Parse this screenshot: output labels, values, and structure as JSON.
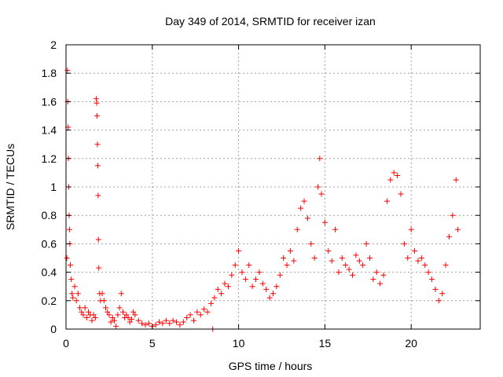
{
  "chart_data": {
    "type": "scatter",
    "title": "Day 349 of 2014, SRMTID for receiver izan",
    "xlabel": "GPS time / hours",
    "ylabel": "SRMTID / TECUs",
    "xlim": [
      0,
      24
    ],
    "ylim": [
      0,
      2
    ],
    "x_ticks": [
      0,
      5,
      10,
      15,
      20
    ],
    "x_tick_labels": [
      "0",
      "5",
      "10",
      "15",
      "20"
    ],
    "y_ticks": [
      0,
      0.2,
      0.4,
      0.6,
      0.8,
      1,
      1.2,
      1.4,
      1.6,
      1.8,
      2
    ],
    "y_tick_labels": [
      "0",
      "0.2",
      "0.4",
      "0.6",
      "0.8",
      "1",
      "1.2",
      "1.4",
      "1.6",
      "1.8",
      "2"
    ],
    "grid": true,
    "marker": "+",
    "series": [
      {
        "name": "SRMTID",
        "color": "#ff0000",
        "points": [
          [
            0.05,
            0.5
          ],
          [
            0.08,
            1.82
          ],
          [
            0.1,
            1.6
          ],
          [
            0.12,
            1.42
          ],
          [
            0.14,
            1.2
          ],
          [
            0.16,
            1.0
          ],
          [
            0.18,
            0.8
          ],
          [
            0.2,
            0.7
          ],
          [
            0.22,
            0.6
          ],
          [
            0.25,
            0.45
          ],
          [
            0.3,
            0.35
          ],
          [
            0.35,
            0.25
          ],
          [
            0.4,
            0.22
          ],
          [
            0.5,
            0.3
          ],
          [
            0.6,
            0.2
          ],
          [
            0.7,
            0.25
          ],
          [
            0.8,
            0.15
          ],
          [
            0.9,
            0.12
          ],
          [
            1.0,
            0.1
          ],
          [
            1.1,
            0.15
          ],
          [
            1.2,
            0.08
          ],
          [
            1.3,
            0.12
          ],
          [
            1.4,
            0.1
          ],
          [
            1.5,
            0.06
          ],
          [
            1.6,
            0.1
          ],
          [
            1.7,
            0.08
          ],
          [
            1.75,
            1.62
          ],
          [
            1.78,
            1.59
          ],
          [
            1.8,
            1.5
          ],
          [
            1.82,
            1.3
          ],
          [
            1.84,
            1.15
          ],
          [
            1.86,
            0.94
          ],
          [
            1.88,
            0.63
          ],
          [
            1.9,
            0.43
          ],
          [
            1.95,
            0.25
          ],
          [
            2.0,
            0.2
          ],
          [
            2.1,
            0.25
          ],
          [
            2.2,
            0.2
          ],
          [
            2.3,
            0.15
          ],
          [
            2.4,
            0.12
          ],
          [
            2.5,
            0.1
          ],
          [
            2.6,
            0.05
          ],
          [
            2.7,
            0.08
          ],
          [
            2.8,
            0.06
          ],
          [
            2.9,
            0.02
          ],
          [
            3.0,
            0.1
          ],
          [
            3.1,
            0.15
          ],
          [
            3.2,
            0.25
          ],
          [
            3.3,
            0.12
          ],
          [
            3.4,
            0.08
          ],
          [
            3.5,
            0.1
          ],
          [
            3.6,
            0.08
          ],
          [
            3.7,
            0.05
          ],
          [
            3.8,
            0.07
          ],
          [
            3.9,
            0.12
          ],
          [
            4.0,
            0.1
          ],
          [
            4.2,
            0.06
          ],
          [
            4.4,
            0.04
          ],
          [
            4.6,
            0.03
          ],
          [
            4.8,
            0.04
          ],
          [
            5.0,
            0.02
          ],
          [
            5.2,
            0.03
          ],
          [
            5.4,
            0.05
          ],
          [
            5.6,
            0.04
          ],
          [
            5.8,
            0.06
          ],
          [
            6.0,
            0.04
          ],
          [
            6.2,
            0.06
          ],
          [
            6.4,
            0.05
          ],
          [
            6.6,
            0.03
          ],
          [
            6.8,
            0.05
          ],
          [
            7.0,
            0.08
          ],
          [
            7.2,
            0.1
          ],
          [
            7.4,
            0.06
          ],
          [
            7.6,
            0.12
          ],
          [
            7.8,
            0.1
          ],
          [
            8.0,
            0.14
          ],
          [
            8.2,
            0.12
          ],
          [
            8.4,
            0.18
          ],
          [
            8.5,
            0.0
          ],
          [
            8.6,
            0.22
          ],
          [
            8.8,
            0.28
          ],
          [
            9.0,
            0.25
          ],
          [
            9.2,
            0.32
          ],
          [
            9.4,
            0.3
          ],
          [
            9.6,
            0.38
          ],
          [
            9.8,
            0.45
          ],
          [
            10.0,
            0.55
          ],
          [
            10.2,
            0.4
          ],
          [
            10.4,
            0.35
          ],
          [
            10.6,
            0.45
          ],
          [
            10.8,
            0.3
          ],
          [
            11.0,
            0.35
          ],
          [
            11.2,
            0.4
          ],
          [
            11.4,
            0.32
          ],
          [
            11.6,
            0.28
          ],
          [
            11.8,
            0.22
          ],
          [
            12.0,
            0.25
          ],
          [
            12.2,
            0.3
          ],
          [
            12.4,
            0.38
          ],
          [
            12.6,
            0.5
          ],
          [
            12.8,
            0.45
          ],
          [
            13.0,
            0.55
          ],
          [
            13.2,
            0.48
          ],
          [
            13.4,
            0.7
          ],
          [
            13.6,
            0.85
          ],
          [
            13.8,
            0.9
          ],
          [
            14.0,
            0.78
          ],
          [
            14.2,
            0.6
          ],
          [
            14.4,
            0.5
          ],
          [
            14.6,
            1.0
          ],
          [
            14.7,
            1.2
          ],
          [
            14.8,
            0.95
          ],
          [
            15.0,
            0.75
          ],
          [
            15.2,
            0.55
          ],
          [
            15.4,
            0.48
          ],
          [
            15.6,
            0.7
          ],
          [
            15.8,
            0.4
          ],
          [
            16.0,
            0.5
          ],
          [
            16.2,
            0.45
          ],
          [
            16.4,
            0.42
          ],
          [
            16.6,
            0.38
          ],
          [
            16.8,
            0.52
          ],
          [
            17.0,
            0.48
          ],
          [
            17.2,
            0.45
          ],
          [
            17.4,
            0.6
          ],
          [
            17.6,
            0.5
          ],
          [
            17.8,
            0.35
          ],
          [
            18.0,
            0.4
          ],
          [
            18.2,
            0.32
          ],
          [
            18.4,
            0.38
          ],
          [
            18.6,
            0.9
          ],
          [
            18.8,
            1.05
          ],
          [
            19.0,
            1.1
          ],
          [
            19.2,
            1.08
          ],
          [
            19.4,
            0.95
          ],
          [
            19.6,
            0.6
          ],
          [
            19.8,
            0.5
          ],
          [
            20.0,
            0.7
          ],
          [
            20.2,
            0.55
          ],
          [
            20.4,
            0.48
          ],
          [
            20.6,
            0.5
          ],
          [
            20.8,
            0.45
          ],
          [
            21.0,
            0.4
          ],
          [
            21.2,
            0.35
          ],
          [
            21.4,
            0.28
          ],
          [
            21.6,
            0.2
          ],
          [
            21.8,
            0.25
          ],
          [
            22.0,
            0.45
          ],
          [
            22.2,
            0.65
          ],
          [
            22.4,
            0.8
          ],
          [
            22.6,
            1.05
          ],
          [
            22.7,
            0.7
          ]
        ]
      }
    ]
  }
}
